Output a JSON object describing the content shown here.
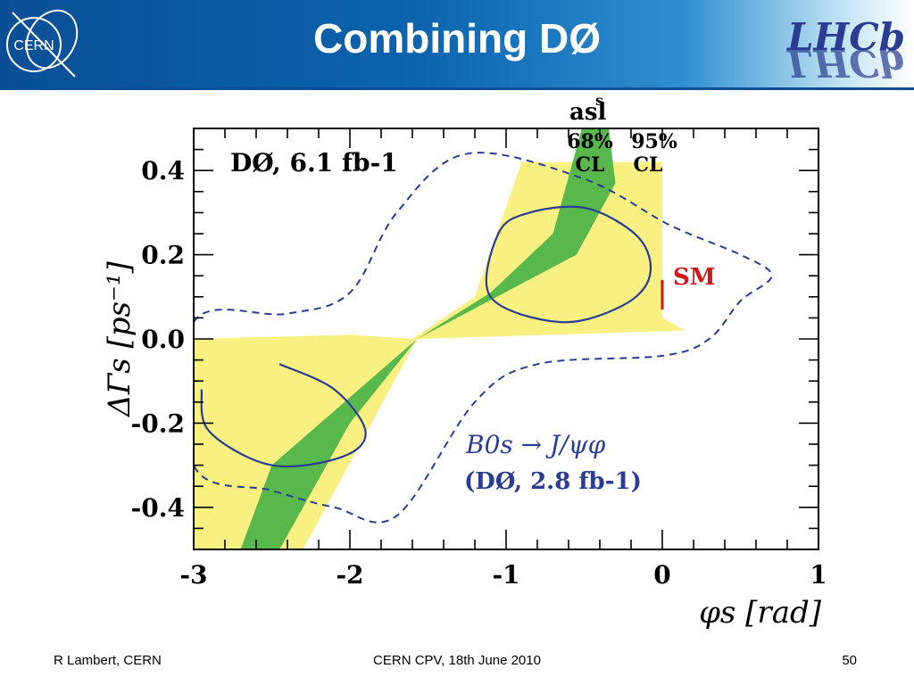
{
  "slide": {
    "title": "Combining DØ",
    "cern_logo_text": "CERN",
    "lhcb_logo_text": "LHCb",
    "footer_left": "R Lambert, CERN",
    "footer_center": "CERN CPV, 18th June 2010",
    "footer_right": "50"
  },
  "colors": {
    "header_blue": "#0b5ea8",
    "band_95": "#f8f080",
    "band_68": "#58b84c",
    "contour": "#2a3d92",
    "sm": "#d01818"
  },
  "chart_data": {
    "type": "contour",
    "xlabel": "φs [rad]",
    "ylabel": "ΔΓs [ps⁻¹]",
    "xlim": [
      -3,
      1
    ],
    "ylim": [
      -0.5,
      0.5
    ],
    "xticks": [
      "-3",
      "-2",
      "-1",
      "0",
      "1"
    ],
    "yticks": [
      "0.4",
      "0.2",
      "0.0",
      "-0.2",
      "-0.4"
    ],
    "annotations": {
      "dataset": "DØ, 6.1 fb-1",
      "asl_label": "asl",
      "asl_sup": "s",
      "cl68": "68%",
      "cl95": "95%",
      "cl": "CL",
      "sm": "SM",
      "jpsiphi_line1": "B0s → J/ψφ",
      "jpsiphi_line2": "(DØ, 2.8 fb-1)"
    },
    "sm_point": {
      "phi_s": 0.0,
      "dgamma_range": [
        0.07,
        0.14
      ]
    },
    "asl_band_95": [
      {
        "x": -3.0,
        "y": 0.0
      },
      {
        "x": -2.0,
        "y": 0.01
      },
      {
        "x": -1.6,
        "y": 0.0
      },
      {
        "x": -1.2,
        "y": 0.1
      },
      {
        "x": -0.9,
        "y": 0.42
      },
      {
        "x": 0.0,
        "y": 0.42
      },
      {
        "x": 0.0,
        "y": 0.05
      },
      {
        "x": 0.15,
        "y": 0.02
      },
      {
        "x": -1.57,
        "y": 0.0
      },
      {
        "x": -2.3,
        "y": -0.5
      },
      {
        "x": -3.0,
        "y": -0.5
      }
    ],
    "asl_band_68": [
      {
        "x": -1.57,
        "y": 0.0
      },
      {
        "x": -1.1,
        "y": 0.11
      },
      {
        "x": -0.7,
        "y": 0.25
      },
      {
        "x": -0.5,
        "y": 0.52
      },
      {
        "x": -0.35,
        "y": 0.52
      },
      {
        "x": -0.3,
        "y": 0.37
      },
      {
        "x": -0.55,
        "y": 0.2
      },
      {
        "x": -1.57,
        "y": 0.0
      },
      {
        "x": -2.0,
        "y": -0.2
      },
      {
        "x": -2.45,
        "y": -0.5
      },
      {
        "x": -2.7,
        "y": -0.5
      },
      {
        "x": -2.5,
        "y": -0.3
      }
    ],
    "contour_68_upper": [
      {
        "x": -0.48,
        "y": 0.31
      },
      {
        "x": -0.15,
        "y": 0.24
      },
      {
        "x": -0.08,
        "y": 0.15
      },
      {
        "x": -0.25,
        "y": 0.08
      },
      {
        "x": -0.65,
        "y": 0.04
      },
      {
        "x": -1.1,
        "y": 0.1
      },
      {
        "x": -1.05,
        "y": 0.25
      },
      {
        "x": -0.85,
        "y": 0.3
      }
    ],
    "contour_68_lower": [
      {
        "x": -2.45,
        "y": -0.06
      },
      {
        "x": -2.1,
        "y": -0.12
      },
      {
        "x": -1.9,
        "y": -0.22
      },
      {
        "x": -2.05,
        "y": -0.28
      },
      {
        "x": -2.5,
        "y": -0.3
      },
      {
        "x": -2.9,
        "y": -0.22
      },
      {
        "x": -2.95,
        "y": -0.12
      }
    ],
    "contour_95": [
      {
        "x": -3.0,
        "y": 0.04
      },
      {
        "x": -2.4,
        "y": 0.06
      },
      {
        "x": -2.0,
        "y": 0.11
      },
      {
        "x": -1.7,
        "y": 0.3
      },
      {
        "x": -1.25,
        "y": 0.44
      },
      {
        "x": -0.5,
        "y": 0.38
      },
      {
        "x": 0.05,
        "y": 0.27
      },
      {
        "x": 0.5,
        "y": 0.2
      },
      {
        "x": 0.7,
        "y": 0.15
      },
      {
        "x": 0.5,
        "y": 0.09
      },
      {
        "x": 0.3,
        "y": 0.0
      },
      {
        "x": 0.0,
        "y": -0.04
      },
      {
        "x": -0.8,
        "y": -0.06
      },
      {
        "x": -1.2,
        "y": -0.15
      },
      {
        "x": -1.7,
        "y": -0.42
      },
      {
        "x": -2.1,
        "y": -0.4
      },
      {
        "x": -2.5,
        "y": -0.36
      },
      {
        "x": -3.0,
        "y": -0.3
      }
    ]
  }
}
